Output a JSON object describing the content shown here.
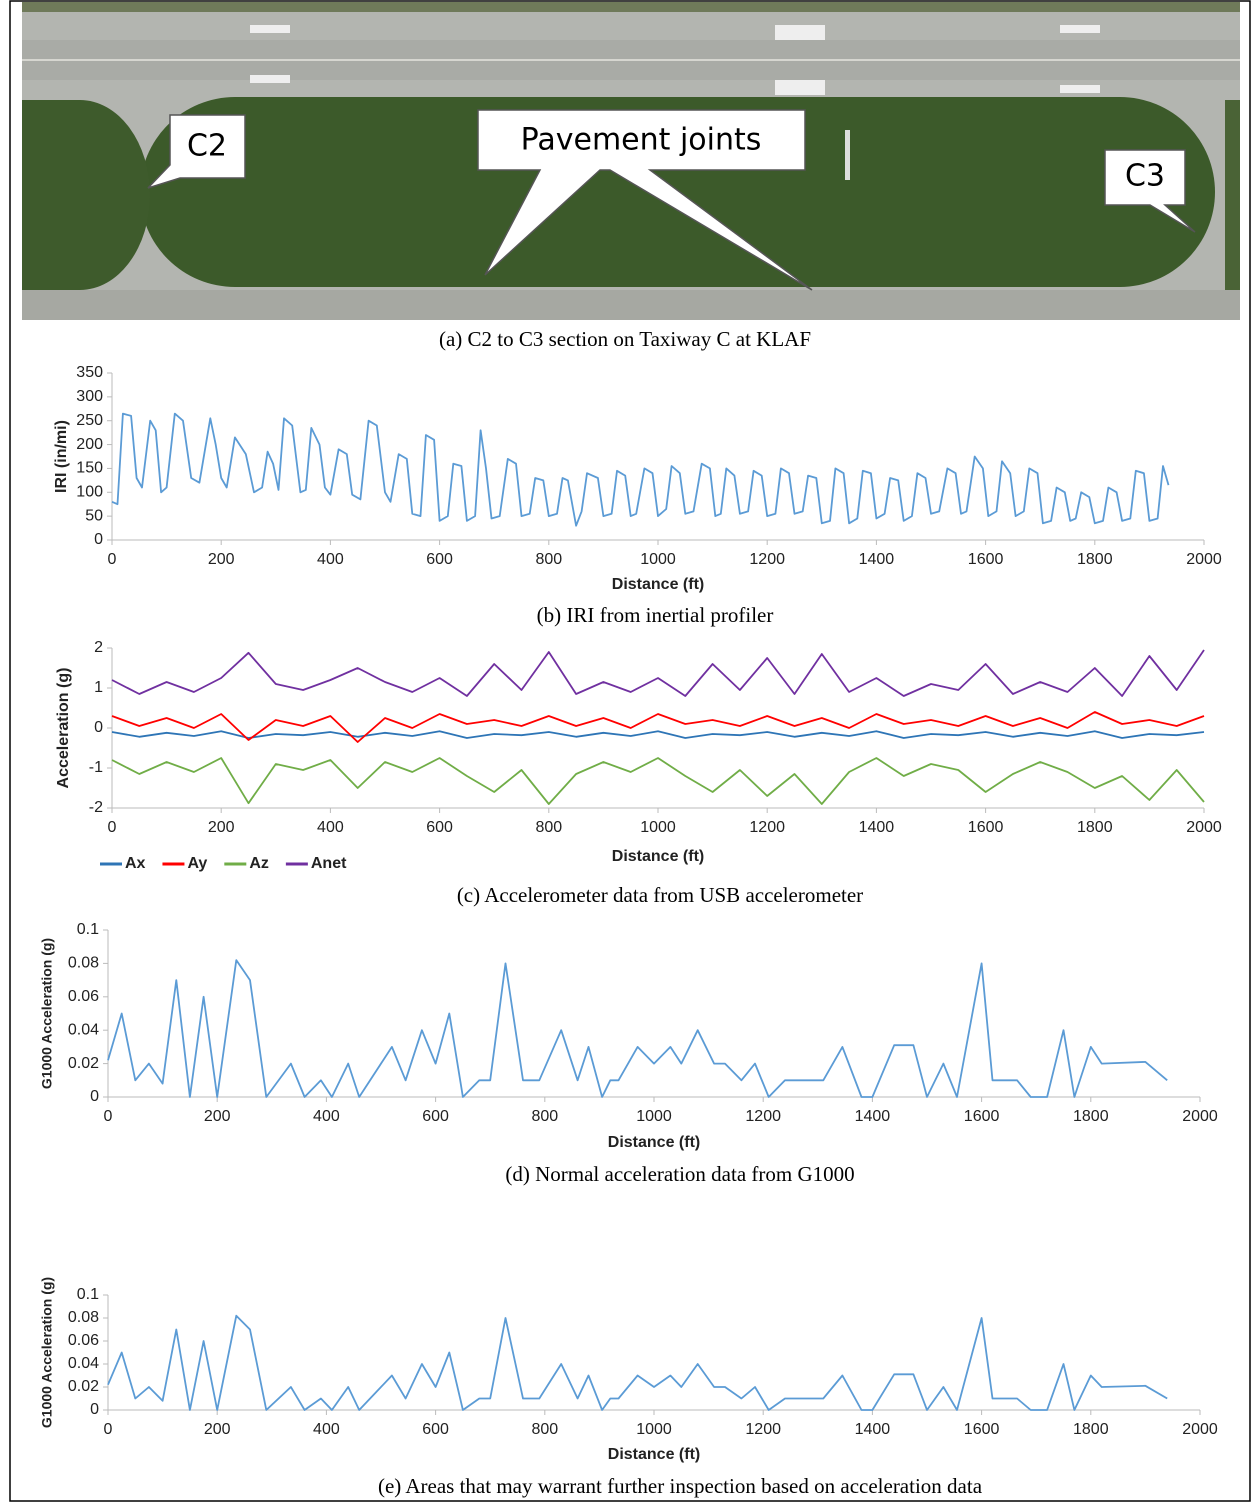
{
  "photo": {
    "callouts": [
      "C2",
      "Pavement joints",
      "C3"
    ],
    "caption": "(a)  C2 to C3 section on Taxiway C at KLAF"
  },
  "chart_data": [
    {
      "type": "line",
      "caption": "(b)  IRI from inertial profiler",
      "xlabel": "Distance (ft)",
      "ylabel": "IRI (in/mi)",
      "color": "#5b9bd5",
      "x": [
        0,
        10,
        20,
        35,
        45,
        55,
        70,
        80,
        90,
        100,
        115,
        130,
        145,
        160,
        180,
        190,
        200,
        210,
        225,
        245,
        260,
        275,
        285,
        295,
        305,
        315,
        330,
        345,
        355,
        365,
        380,
        390,
        400,
        415,
        430,
        440,
        455,
        470,
        485,
        500,
        510,
        525,
        540,
        550,
        565,
        575,
        590,
        600,
        615,
        625,
        640,
        650,
        665,
        675,
        685,
        695,
        710,
        725,
        740,
        750,
        765,
        775,
        790,
        800,
        815,
        825,
        835,
        850,
        860,
        870,
        890,
        900,
        915,
        925,
        940,
        950,
        960,
        975,
        990,
        1000,
        1015,
        1025,
        1040,
        1050,
        1065,
        1080,
        1095,
        1105,
        1115,
        1125,
        1140,
        1150,
        1165,
        1175,
        1190,
        1200,
        1215,
        1225,
        1240,
        1250,
        1265,
        1275,
        1290,
        1300,
        1315,
        1325,
        1340,
        1350,
        1365,
        1375,
        1390,
        1400,
        1415,
        1425,
        1440,
        1450,
        1465,
        1475,
        1490,
        1500,
        1515,
        1530,
        1545,
        1555,
        1565,
        1580,
        1595,
        1605,
        1620,
        1630,
        1645,
        1655,
        1670,
        1680,
        1695,
        1705,
        1720,
        1730,
        1745,
        1755,
        1765,
        1775,
        1790,
        1800,
        1815,
        1825,
        1840,
        1850,
        1865,
        1875,
        1890,
        1900,
        1915,
        1925,
        1935
      ],
      "values": [
        80,
        75,
        265,
        260,
        130,
        110,
        250,
        230,
        100,
        110,
        265,
        250,
        130,
        120,
        255,
        200,
        130,
        110,
        215,
        180,
        100,
        110,
        185,
        160,
        105,
        255,
        240,
        100,
        105,
        235,
        200,
        110,
        95,
        190,
        180,
        95,
        85,
        250,
        240,
        100,
        80,
        180,
        170,
        55,
        50,
        220,
        210,
        40,
        50,
        160,
        155,
        40,
        50,
        230,
        150,
        45,
        50,
        170,
        160,
        50,
        55,
        130,
        125,
        50,
        55,
        130,
        125,
        30,
        60,
        140,
        130,
        50,
        55,
        145,
        135,
        50,
        55,
        150,
        140,
        50,
        65,
        155,
        140,
        55,
        60,
        160,
        150,
        50,
        55,
        150,
        135,
        55,
        60,
        145,
        135,
        50,
        55,
        150,
        140,
        55,
        60,
        135,
        130,
        35,
        40,
        150,
        140,
        35,
        45,
        145,
        140,
        45,
        55,
        130,
        125,
        40,
        50,
        140,
        130,
        55,
        60,
        150,
        140,
        55,
        60,
        175,
        150,
        50,
        60,
        165,
        140,
        50,
        60,
        150,
        140,
        35,
        40,
        110,
        100,
        40,
        45,
        100,
        90,
        35,
        40,
        110,
        100,
        40,
        45,
        145,
        140,
        40,
        45,
        155,
        115
      ],
      "xlim": [
        0,
        2000
      ],
      "ylim": [
        0,
        350
      ],
      "xticks": [
        0,
        200,
        400,
        600,
        800,
        1000,
        1200,
        1400,
        1600,
        1800,
        2000
      ],
      "yticks": [
        0,
        50,
        100,
        150,
        200,
        250,
        300,
        350
      ]
    },
    {
      "type": "line",
      "caption": "(c)   Accelerometer data from USB accelerometer",
      "xlabel": "Distance (ft)",
      "ylabel": "Acceleration (g)",
      "legend": "bottom-left",
      "x": [
        0,
        50,
        100,
        150,
        200,
        250,
        300,
        350,
        400,
        450,
        500,
        550,
        600,
        650,
        700,
        750,
        800,
        850,
        900,
        950,
        1000,
        1050,
        1100,
        1150,
        1200,
        1250,
        1300,
        1350,
        1400,
        1450,
        1500,
        1550,
        1600,
        1650,
        1700,
        1750,
        1800,
        1850,
        1900,
        1950,
        2000
      ],
      "series": [
        {
          "name": "Ax",
          "color": "#2e75b6",
          "values": [
            -0.1,
            -0.22,
            -0.12,
            -0.2,
            -0.08,
            -0.25,
            -0.15,
            -0.18,
            -0.1,
            -0.22,
            -0.12,
            -0.2,
            -0.08,
            -0.25,
            -0.15,
            -0.18,
            -0.1,
            -0.22,
            -0.12,
            -0.2,
            -0.08,
            -0.25,
            -0.15,
            -0.18,
            -0.1,
            -0.22,
            -0.12,
            -0.2,
            -0.08,
            -0.25,
            -0.15,
            -0.18,
            -0.1,
            -0.22,
            -0.12,
            -0.2,
            -0.08,
            -0.25,
            -0.15,
            -0.18,
            -0.1
          ]
        },
        {
          "name": "Ay",
          "color": "#ff0000",
          "values": [
            0.3,
            0.05,
            0.25,
            0,
            0.35,
            -0.3,
            0.2,
            0.05,
            0.3,
            -0.35,
            0.25,
            0,
            0.35,
            0.1,
            0.2,
            0.05,
            0.3,
            0.05,
            0.25,
            0,
            0.35,
            0.1,
            0.2,
            0.05,
            0.3,
            0.05,
            0.25,
            0,
            0.35,
            0.1,
            0.2,
            0.05,
            0.3,
            0.05,
            0.25,
            0,
            0.4,
            0.1,
            0.2,
            0.05,
            0.3
          ]
        },
        {
          "name": "Az",
          "color": "#70ad47",
          "values": [
            -0.8,
            -1.15,
            -0.85,
            -1.1,
            -0.75,
            -1.88,
            -0.9,
            -1.05,
            -0.8,
            -1.5,
            -0.85,
            -1.1,
            -0.75,
            -1.2,
            -1.6,
            -1.05,
            -1.9,
            -1.15,
            -0.85,
            -1.1,
            -0.75,
            -1.2,
            -1.6,
            -1.05,
            -1.7,
            -1.15,
            -1.9,
            -1.1,
            -0.75,
            -1.2,
            -0.9,
            -1.05,
            -1.6,
            -1.15,
            -0.85,
            -1.1,
            -1.5,
            -1.2,
            -1.8,
            -1.05,
            -1.85
          ]
        },
        {
          "name": "Anet",
          "color": "#7030a0",
          "values": [
            1.2,
            0.85,
            1.15,
            0.9,
            1.25,
            1.88,
            1.1,
            0.95,
            1.2,
            1.5,
            1.15,
            0.9,
            1.25,
            0.8,
            1.6,
            0.95,
            1.9,
            0.85,
            1.15,
            0.9,
            1.25,
            0.8,
            1.6,
            0.95,
            1.75,
            0.85,
            1.85,
            0.9,
            1.25,
            0.8,
            1.1,
            0.95,
            1.6,
            0.85,
            1.15,
            0.9,
            1.5,
            0.8,
            1.8,
            0.95,
            1.95
          ]
        }
      ],
      "xlim": [
        0,
        2000
      ],
      "ylim": [
        -2,
        2
      ],
      "xticks": [
        0,
        200,
        400,
        600,
        800,
        1000,
        1200,
        1400,
        1600,
        1800,
        2000
      ],
      "yticks": [
        -2,
        -1,
        0,
        1,
        2
      ]
    },
    {
      "type": "line",
      "caption": "(d)  Normal acceleration data from G1000",
      "xlabel": "Distance (ft)",
      "ylabel": "G1000 Acceleration (g)",
      "color": "#5b9bd5",
      "x": [
        0,
        25,
        50,
        75,
        100,
        125,
        150,
        175,
        200,
        235,
        260,
        290,
        335,
        360,
        390,
        410,
        440,
        460,
        520,
        545,
        575,
        600,
        625,
        650,
        680,
        700,
        728,
        760,
        790,
        830,
        860,
        880,
        905,
        920,
        935,
        970,
        1000,
        1030,
        1050,
        1080,
        1110,
        1130,
        1160,
        1185,
        1210,
        1240,
        1310,
        1345,
        1380,
        1400,
        1440,
        1475,
        1500,
        1530,
        1555,
        1600,
        1620,
        1665,
        1690,
        1720,
        1750,
        1770,
        1800,
        1820,
        1900,
        1940
      ],
      "values": [
        0.022,
        0.05,
        0.01,
        0.02,
        0.008,
        0.07,
        0,
        0.06,
        0,
        0.082,
        0.07,
        0,
        0.02,
        0,
        0.01,
        0,
        0.02,
        0,
        0.03,
        0.01,
        0.04,
        0.02,
        0.05,
        0,
        0.01,
        0.01,
        0.08,
        0.01,
        0.01,
        0.04,
        0.01,
        0.03,
        0,
        0.01,
        0.01,
        0.03,
        0.02,
        0.03,
        0.02,
        0.04,
        0.02,
        0.02,
        0.01,
        0.02,
        0,
        0.01,
        0.01,
        0.03,
        0,
        0,
        0.031,
        0.031,
        0,
        0.02,
        0,
        0.08,
        0.01,
        0.01,
        0,
        0,
        0.04,
        0,
        0.03,
        0.02,
        0.021,
        0.01
      ],
      "xlim": [
        0,
        2000
      ],
      "ylim": [
        0,
        0.1
      ],
      "xticks": [
        0,
        200,
        400,
        600,
        800,
        1000,
        1200,
        1400,
        1600,
        1800,
        2000
      ],
      "yticks": [
        0,
        0.02,
        0.04,
        0.06,
        0.08,
        0.1
      ]
    },
    {
      "type": "line",
      "caption": "(e)   Areas that may warrant further inspection based on acceleration data",
      "xlabel": "Distance (ft)",
      "ylabel": "G1000 Acceleration (g)",
      "color": "#5b9bd5",
      "x": [
        0,
        25,
        50,
        75,
        100,
        125,
        150,
        175,
        200,
        235,
        260,
        290,
        335,
        360,
        390,
        410,
        440,
        460,
        520,
        545,
        575,
        600,
        625,
        650,
        680,
        700,
        728,
        760,
        790,
        830,
        860,
        880,
        905,
        920,
        935,
        970,
        1000,
        1030,
        1050,
        1080,
        1110,
        1130,
        1160,
        1185,
        1210,
        1240,
        1310,
        1345,
        1380,
        1400,
        1440,
        1475,
        1500,
        1530,
        1555,
        1600,
        1620,
        1665,
        1690,
        1720,
        1750,
        1770,
        1800,
        1820,
        1900,
        1940
      ],
      "values": [
        0.022,
        0.05,
        0.01,
        0.02,
        0.008,
        0.07,
        0,
        0.06,
        0,
        0.082,
        0.07,
        0,
        0.02,
        0,
        0.01,
        0,
        0.02,
        0,
        0.03,
        0.01,
        0.04,
        0.02,
        0.05,
        0,
        0.01,
        0.01,
        0.08,
        0.01,
        0.01,
        0.04,
        0.01,
        0.03,
        0,
        0.01,
        0.01,
        0.03,
        0.02,
        0.03,
        0.02,
        0.04,
        0.02,
        0.02,
        0.01,
        0.02,
        0,
        0.01,
        0.01,
        0.03,
        0,
        0,
        0.031,
        0.031,
        0,
        0.02,
        0,
        0.08,
        0.01,
        0.01,
        0,
        0,
        0.04,
        0,
        0.03,
        0.02,
        0.021,
        0.01
      ],
      "xlim": [
        0,
        2000
      ],
      "ylim": [
        0,
        0.1
      ],
      "xticks": [
        0,
        200,
        400,
        600,
        800,
        1000,
        1200,
        1400,
        1600,
        1800,
        2000
      ],
      "yticks": [
        0,
        0.02,
        0.04,
        0.06,
        0.08,
        0.1
      ]
    }
  ]
}
